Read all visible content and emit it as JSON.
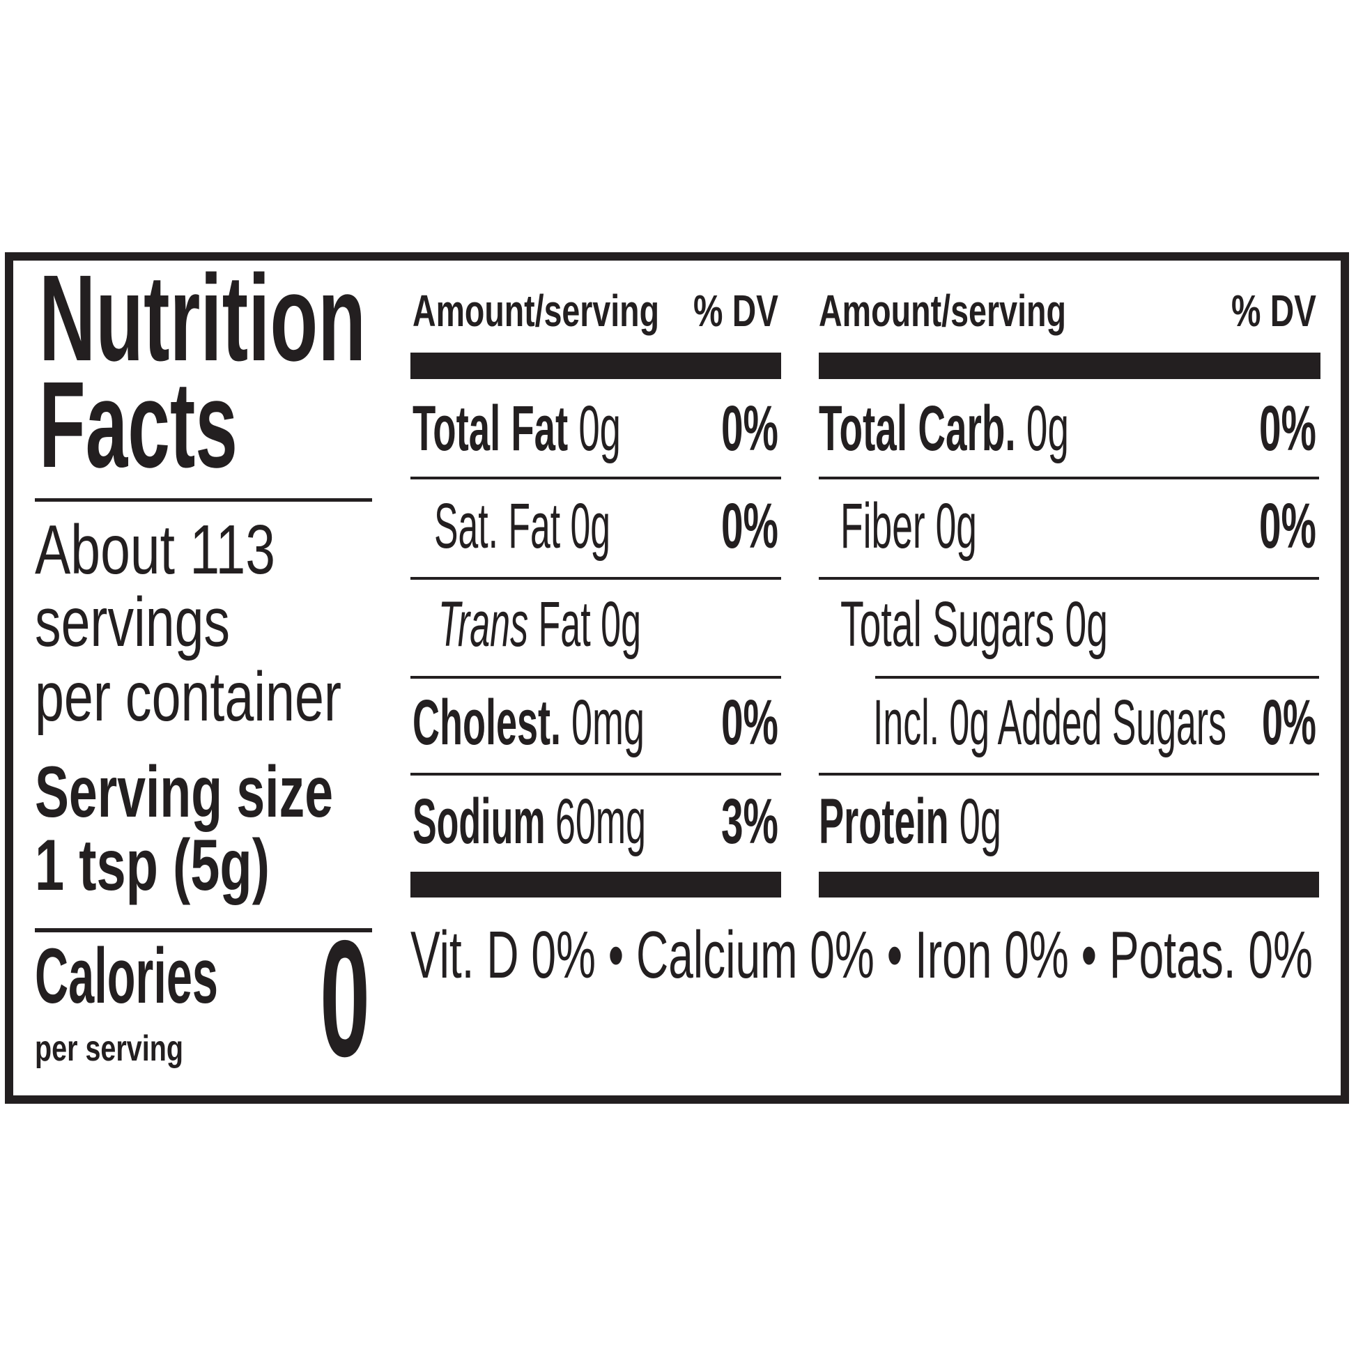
{
  "title": {
    "line1": "Nutrition",
    "line2": "Facts"
  },
  "servings": {
    "line1": "About 113",
    "line2": "servings",
    "line3": "per container"
  },
  "serving_size": {
    "label": "Serving size",
    "value": "1 tsp (5g)"
  },
  "calories": {
    "label": "Calories",
    "sub": "per serving",
    "value": "0"
  },
  "header": {
    "amount": "Amount/serving",
    "dv": "% DV"
  },
  "left_rows": [
    {
      "name": "Total Fat",
      "amount": "0g",
      "dv": "0%"
    },
    {
      "name": "Sat. Fat",
      "amount": "0g",
      "dv": "0%"
    },
    {
      "name_italic": "Trans",
      "name": "Fat",
      "amount": "0g"
    },
    {
      "name": "Cholest.",
      "amount": "0mg",
      "dv": "0%"
    },
    {
      "name": "Sodium",
      "amount": "60mg",
      "dv": "3%"
    }
  ],
  "right_rows": [
    {
      "name": "Total Carb.",
      "amount": "0g",
      "dv": "0%"
    },
    {
      "name": "Fiber",
      "amount": "0g",
      "dv": "0%"
    },
    {
      "name": "Total Sugars",
      "amount": "0g"
    },
    {
      "name": "Incl. 0g Added Sugars",
      "dv": "0%"
    },
    {
      "name": "Protein",
      "amount": "0g"
    }
  ],
  "footer": "Vit. D 0% • Calcium 0% • Iron 0% • Potas. 0%",
  "colors": {
    "ink": "#231f20",
    "background": "#ffffff"
  }
}
